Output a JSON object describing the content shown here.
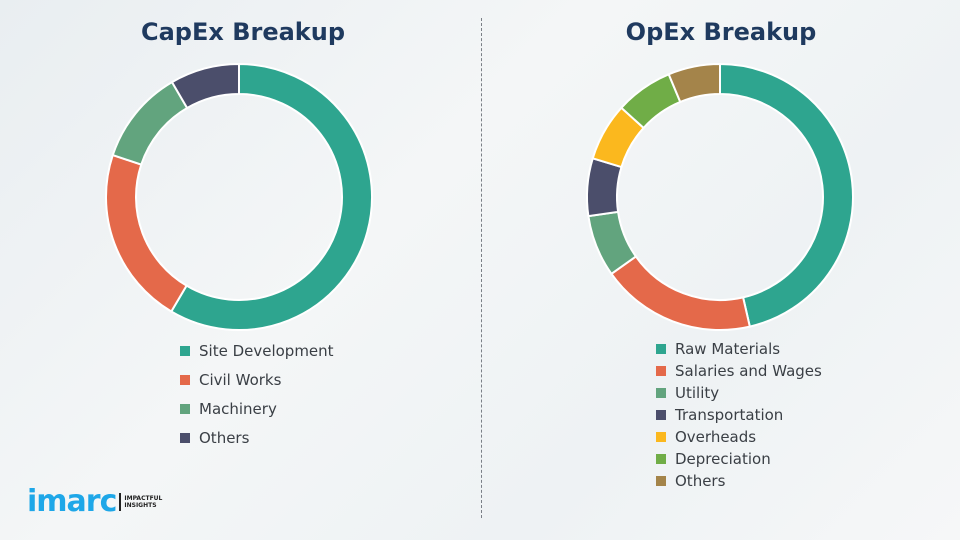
{
  "chart_data": [
    {
      "type": "pie",
      "title": "CapEx Breakup",
      "donut": true,
      "legend": "bottom",
      "categories": [
        "Site Development",
        "Civil Works",
        "Machinery",
        "Others"
      ],
      "values": [
        58.5,
        21.6,
        11.5,
        8.4
      ],
      "colors": [
        "#2ea58f",
        "#e4694a",
        "#62a47e",
        "#4b4e6b"
      ]
    },
    {
      "type": "pie",
      "title": "OpEx Breakup",
      "donut": true,
      "legend": "bottom",
      "categories": [
        "Raw Materials",
        "Salaries and Wages",
        "Utility",
        "Transportation",
        "Overheads",
        "Depreciation",
        "Others"
      ],
      "values": [
        46.4,
        18.8,
        7.5,
        7.0,
        7.0,
        7.0,
        6.3
      ],
      "colors": [
        "#2ea58f",
        "#e4694a",
        "#62a47e",
        "#4b4e6b",
        "#fbb81e",
        "#70ad47",
        "#a4844a"
      ]
    }
  ],
  "logo": {
    "word": "imarc",
    "tagline": [
      "IMPACTFUL",
      "INSIGHTS"
    ]
  }
}
